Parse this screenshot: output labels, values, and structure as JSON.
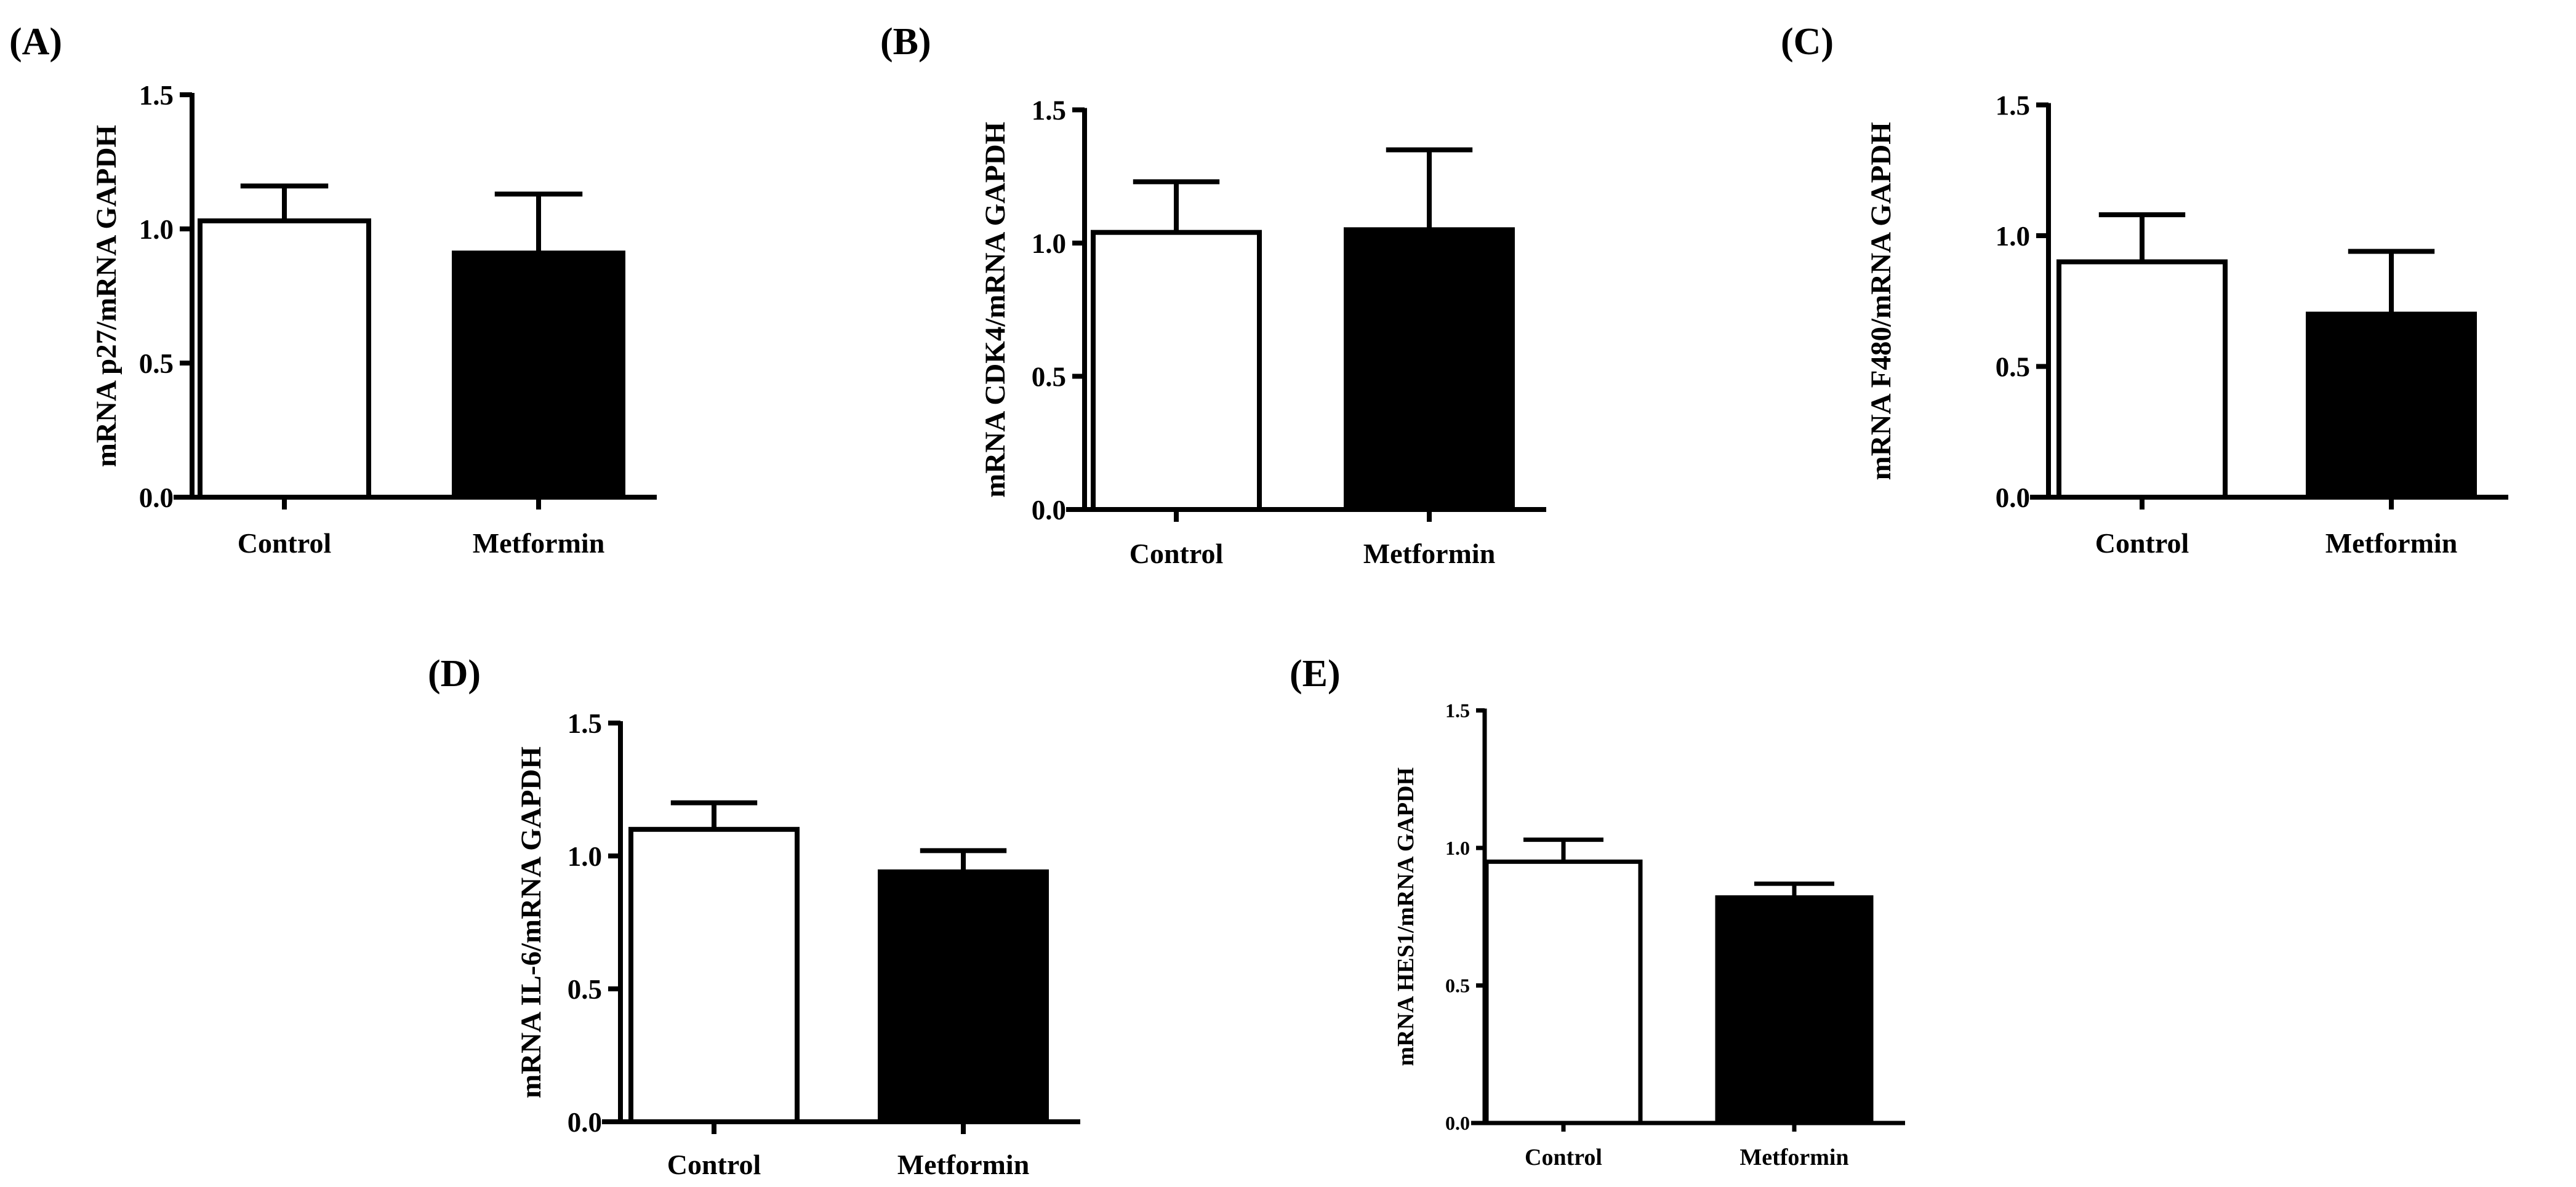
{
  "figure": {
    "colors": {
      "control": "#ffffff",
      "metformin": "#000000",
      "stroke": "#000000"
    }
  },
  "chart_data": [
    {
      "id": "A",
      "type": "bar",
      "panel_label": "(A)",
      "ylabel": "mRNA p27/mRNA  GAPDH",
      "categories": [
        "Control",
        "Metformin"
      ],
      "values": [
        1.03,
        0.91
      ],
      "errors": [
        0.13,
        0.22
      ],
      "ylim": [
        0,
        1.5
      ],
      "yticks": [
        0.0,
        0.5,
        1.0,
        1.5
      ],
      "ytick_labels": [
        "0.0",
        "0.5",
        "1.0",
        "1.5"
      ],
      "fills": [
        "#ffffff",
        "#000000"
      ]
    },
    {
      "id": "B",
      "type": "bar",
      "panel_label": "(B)",
      "ylabel": "mRNA CDK4/mRNA  GAPDH",
      "categories": [
        "Control",
        "Metformin"
      ],
      "values": [
        1.04,
        1.05
      ],
      "errors": [
        0.19,
        0.3
      ],
      "ylim": [
        0,
        1.5
      ],
      "yticks": [
        0.0,
        0.5,
        1.0,
        1.5
      ],
      "ytick_labels": [
        "0.0",
        "0.5",
        "1.0",
        "1.5"
      ],
      "fills": [
        "#ffffff",
        "#000000"
      ]
    },
    {
      "id": "C",
      "type": "bar",
      "panel_label": "(C)",
      "ylabel": "mRNA F480/mRNA  GAPDH",
      "categories": [
        "Control",
        "Metformin"
      ],
      "values": [
        0.9,
        0.7
      ],
      "errors": [
        0.18,
        0.24
      ],
      "ylim": [
        0,
        1.5
      ],
      "yticks": [
        0.0,
        0.5,
        1.0,
        1.5
      ],
      "ytick_labels": [
        "0.0",
        "0.5",
        "1.0",
        "1.5"
      ],
      "fills": [
        "#ffffff",
        "#000000"
      ]
    },
    {
      "id": "D",
      "type": "bar",
      "panel_label": "(D)",
      "ylabel": "mRNA IL-6/mRNA  GAPDH",
      "categories": [
        "Control",
        "Metformin"
      ],
      "values": [
        1.1,
        0.94
      ],
      "errors": [
        0.1,
        0.08
      ],
      "ylim": [
        0,
        1.5
      ],
      "yticks": [
        0.0,
        0.5,
        1.0,
        1.5
      ],
      "ytick_labels": [
        "0.0",
        "0.5",
        "1.0",
        "1.5"
      ],
      "fills": [
        "#ffffff",
        "#000000"
      ]
    },
    {
      "id": "E",
      "type": "bar",
      "panel_label": "(E)",
      "ylabel": "mRNA HES1/mRNA  GAPDH",
      "categories": [
        "Control",
        "Metformin"
      ],
      "values": [
        0.95,
        0.82
      ],
      "errors": [
        0.08,
        0.05
      ],
      "ylim": [
        0,
        1.5
      ],
      "yticks": [
        0.0,
        0.5,
        1.0,
        1.5
      ],
      "ytick_labels": [
        "0.0",
        "0.5",
        "1.0",
        "1.5"
      ],
      "fills": [
        "#ffffff",
        "#000000"
      ]
    }
  ]
}
